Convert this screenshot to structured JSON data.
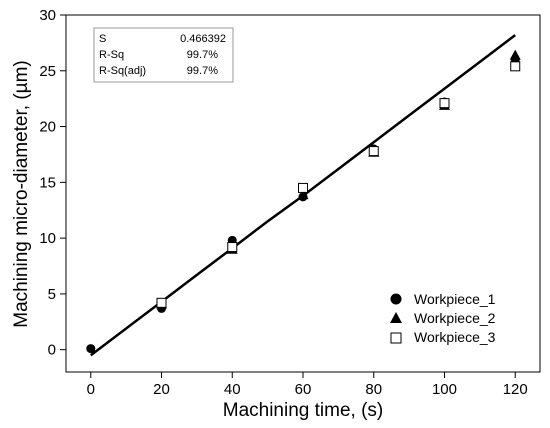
{
  "chart_data": {
    "type": "scatter",
    "xlabel": "Machining time, (s)",
    "ylabel": "Machining micro-diameter, (µm)",
    "xlim": [
      -7,
      127
    ],
    "ylim": [
      -2,
      30
    ],
    "xticks": [
      0,
      20,
      40,
      60,
      80,
      100,
      120
    ],
    "yticks": [
      0,
      5,
      10,
      15,
      20,
      25,
      30
    ],
    "series": [
      {
        "name": "Workpiece_1",
        "marker": "filled-circle",
        "x": [
          0,
          20,
          40,
          60,
          80,
          100,
          120
        ],
        "y": [
          0.1,
          3.7,
          9.8,
          13.7,
          18.0,
          22.2,
          26.0
        ]
      },
      {
        "name": "Workpiece_2",
        "marker": "filled-triangle",
        "x": [
          20,
          40,
          60,
          80,
          100,
          120
        ],
        "y": [
          4.1,
          9.0,
          13.9,
          17.7,
          21.9,
          26.4
        ]
      },
      {
        "name": "Workpiece_3",
        "marker": "open-square",
        "x": [
          20,
          40,
          60,
          80,
          100,
          120
        ],
        "y": [
          4.2,
          9.2,
          14.5,
          17.8,
          22.1,
          25.4
        ]
      }
    ],
    "fit_line": {
      "x": [
        0,
        10,
        20,
        30,
        40,
        50,
        60,
        70,
        80,
        90,
        100,
        110,
        120
      ],
      "y": [
        -0.5,
        1.9,
        4.3,
        6.7,
        9.1,
        11.5,
        13.8,
        16.2,
        18.6,
        21.0,
        23.4,
        25.8,
        28.2
      ]
    },
    "stats": [
      {
        "label": "S",
        "value": "0.466392"
      },
      {
        "label": "R-Sq",
        "value": "99.7%"
      },
      {
        "label": "R-Sq(adj)",
        "value": "99.7%"
      }
    ],
    "legend_position": "bottom-right",
    "grid": false
  }
}
